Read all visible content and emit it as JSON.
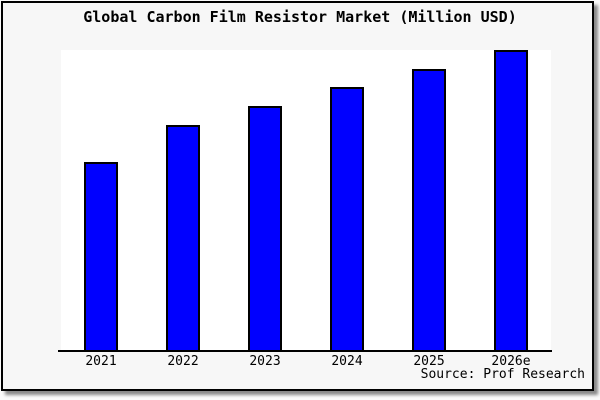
{
  "page": {
    "background_color": "#fafafa"
  },
  "frame": {
    "border_color": "#000000",
    "background_color": "#f7f7f7",
    "shadow_color": "rgba(0,0,0,0.45)"
  },
  "chart_data": {
    "type": "bar",
    "title": "Global Carbon Film Resistor Market (Million USD)",
    "categories": [
      "2021",
      "2022",
      "2023",
      "2024",
      "2025",
      "2026e"
    ],
    "values": [
      62.7,
      75,
      81.3,
      87.7,
      93.7,
      100
    ],
    "values_note": "No y-axis scale or data labels are shown in the chart; values are relative bar heights with the tallest bar (2026e) = 100.",
    "xlabel": "",
    "ylabel": "",
    "ylim": [
      0,
      100
    ],
    "grid": false,
    "legend": false,
    "y_axis_visible": false,
    "plot_bg_color": "#ffffff",
    "bar_color": "#0000ff",
    "bar_border_color": "#000000",
    "axis_line_color": "#000000"
  },
  "footer": {
    "source_label": "Source: Prof Research"
  }
}
